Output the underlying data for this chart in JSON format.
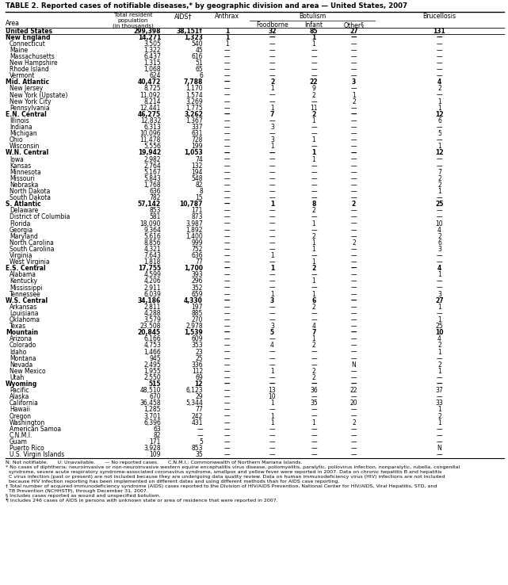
{
  "title": "TABLE 2. Reported cases of notifiable diseases,* by geographic division and area — United States, 2007",
  "botulism_header": "Botulism",
  "rows": [
    [
      "United States",
      "299,398",
      "38,151†",
      "1",
      "32",
      "85",
      "27",
      "131"
    ],
    [
      "New England",
      "14,271",
      "1,323",
      "1",
      "—",
      "1",
      "—",
      "—"
    ],
    [
      "Connecticut",
      "3,505",
      "540",
      "1",
      "—",
      "1",
      "—",
      "—"
    ],
    [
      "Maine",
      "1,322",
      "45",
      "—",
      "—",
      "—",
      "—",
      "—"
    ],
    [
      "Massachusetts",
      "6,437",
      "616",
      "—",
      "—",
      "—",
      "—",
      "—"
    ],
    [
      "New Hampshire",
      "1,315",
      "51",
      "—",
      "—",
      "—",
      "—",
      "—"
    ],
    [
      "Rhode Island",
      "1,068",
      "65",
      "—",
      "—",
      "—",
      "—",
      "—"
    ],
    [
      "Vermont",
      "624",
      "6",
      "—",
      "—",
      "—",
      "—",
      "—"
    ],
    [
      "Mid. Atlantic",
      "40,472",
      "7,788",
      "—",
      "2",
      "22",
      "3",
      "4"
    ],
    [
      "New Jersey",
      "8,725",
      "1,170",
      "—",
      "1",
      "9",
      "—",
      "2"
    ],
    [
      "New York (Upstate)",
      "11,092",
      "1,574",
      "—",
      "—",
      "2",
      "1",
      "—"
    ],
    [
      "New York City",
      "8,214",
      "3,269",
      "—",
      "—",
      "—",
      "2",
      "1"
    ],
    [
      "Pennsylvania",
      "12,441",
      "1,775",
      "—",
      "1",
      "11",
      "—",
      "1"
    ],
    [
      "E.N. Central",
      "46,275",
      "3,262",
      "—",
      "7",
      "2",
      "—",
      "12"
    ],
    [
      "Illinois",
      "12,832",
      "1,367",
      "—",
      "—",
      "1",
      "—",
      "6"
    ],
    [
      "Indiana",
      "6,313",
      "337",
      "—",
      "3",
      "—",
      "—",
      "—"
    ],
    [
      "Michigan",
      "10,096",
      "631",
      "—",
      "—",
      "—",
      "—",
      "5"
    ],
    [
      "Ohio",
      "11,478",
      "728",
      "—",
      "3",
      "1",
      "—",
      "—"
    ],
    [
      "Wisconsin",
      "5,556",
      "199",
      "—",
      "1",
      "—",
      "—",
      "1"
    ],
    [
      "W.N. Central",
      "19,942",
      "1,053",
      "—",
      "—",
      "1",
      "—",
      "12"
    ],
    [
      "Iowa",
      "2,982",
      "74",
      "—",
      "—",
      "1",
      "—",
      "—"
    ],
    [
      "Kansas",
      "2,764",
      "132",
      "—",
      "—",
      "—",
      "—",
      "—"
    ],
    [
      "Minnesota",
      "5,167",
      "194",
      "—",
      "—",
      "—",
      "—",
      "7"
    ],
    [
      "Missouri",
      "5,843",
      "548",
      "—",
      "—",
      "—",
      "—",
      "2"
    ],
    [
      "Nebraska",
      "1,768",
      "82",
      "—",
      "—",
      "—",
      "—",
      "2"
    ],
    [
      "North Dakota",
      "636",
      "8",
      "—",
      "—",
      "—",
      "—",
      "1"
    ],
    [
      "South Dakota",
      "782",
      "15",
      "—",
      "—",
      "—",
      "—",
      "—"
    ],
    [
      "S. Atlantic",
      "57,142",
      "10,787",
      "—",
      "1",
      "8",
      "2",
      "25"
    ],
    [
      "Delaware",
      "853",
      "171",
      "—",
      "—",
      "2",
      "—",
      "—"
    ],
    [
      "District of Columbia",
      "581",
      "873",
      "—",
      "—",
      "—",
      "—",
      "—"
    ],
    [
      "Florida",
      "18,090",
      "3,987",
      "—",
      "—",
      "1",
      "—",
      "10"
    ],
    [
      "Georgia",
      "9,364",
      "1,892",
      "—",
      "—",
      "—",
      "—",
      "4"
    ],
    [
      "Maryland",
      "5,616",
      "1,400",
      "—",
      "—",
      "2",
      "—",
      "2"
    ],
    [
      "North Carolina",
      "8,856",
      "999",
      "—",
      "—",
      "1",
      "2",
      "6"
    ],
    [
      "South Carolina",
      "4,321",
      "752",
      "—",
      "—",
      "1",
      "—",
      "3"
    ],
    [
      "Virginia",
      "7,643",
      "636",
      "—",
      "1",
      "—",
      "—",
      "—"
    ],
    [
      "West Virginia",
      "1,818",
      "77",
      "—",
      "—",
      "1",
      "—",
      "—"
    ],
    [
      "E.S. Central",
      "17,755",
      "1,700",
      "—",
      "1",
      "2",
      "—",
      "4"
    ],
    [
      "Alabama",
      "4,599",
      "393",
      "—",
      "—",
      "—",
      "—",
      "1"
    ],
    [
      "Kentucky",
      "4,206",
      "296",
      "—",
      "—",
      "1",
      "—",
      "—"
    ],
    [
      "Mississippi",
      "2,911",
      "352",
      "—",
      "—",
      "—",
      "—",
      "—"
    ],
    [
      "Tennessee",
      "6,039",
      "659",
      "—",
      "1",
      "1",
      "—",
      "3"
    ],
    [
      "W.S. Central",
      "34,186",
      "4,330",
      "—",
      "3",
      "6",
      "—",
      "27"
    ],
    [
      "Arkansas",
      "2,811",
      "197",
      "—",
      "—",
      "2",
      "—",
      "1"
    ],
    [
      "Louisiana",
      "4,288",
      "885",
      "—",
      "—",
      "—",
      "—",
      "—"
    ],
    [
      "Oklahoma",
      "3,579",
      "270",
      "—",
      "—",
      "—",
      "—",
      "1"
    ],
    [
      "Texas",
      "23,508",
      "2,978",
      "—",
      "3",
      "4",
      "—",
      "25"
    ],
    [
      "Mountain",
      "20,845",
      "1,539",
      "—",
      "5",
      "7",
      "—",
      "10"
    ],
    [
      "Arizona",
      "6,166",
      "609",
      "—",
      "—",
      "1",
      "—",
      "4"
    ],
    [
      "Colorado",
      "4,753",
      "353",
      "—",
      "4",
      "2",
      "—",
      "2"
    ],
    [
      "Idaho",
      "1,466",
      "23",
      "—",
      "—",
      "—",
      "—",
      "1"
    ],
    [
      "Montana",
      "945",
      "25",
      "—",
      "—",
      "—",
      "—",
      "—"
    ],
    [
      "Nevada",
      "2,495",
      "336",
      "—",
      "—",
      "—",
      "N",
      "2"
    ],
    [
      "New Mexico",
      "1,955",
      "112",
      "—",
      "1",
      "2",
      "—",
      "1"
    ],
    [
      "Utah",
      "2,550",
      "69",
      "—",
      "—",
      "2",
      "—",
      "—"
    ],
    [
      "Wyoming",
      "515",
      "12",
      "—",
      "—",
      "—",
      "—",
      "—"
    ],
    [
      "Pacific",
      "48,510",
      "6,123",
      "—",
      "13",
      "36",
      "22",
      "37"
    ],
    [
      "Alaska",
      "670",
      "29",
      "—",
      "10",
      "—",
      "—",
      "—"
    ],
    [
      "California",
      "36,458",
      "5,344",
      "—",
      "1",
      "35",
      "20",
      "33"
    ],
    [
      "Hawaii",
      "1,285",
      "77",
      "—",
      "—",
      "—",
      "—",
      "1"
    ],
    [
      "Oregon",
      "3,701",
      "242",
      "—",
      "1",
      "—",
      "—",
      "2"
    ],
    [
      "Washington",
      "6,396",
      "431",
      "—",
      "1",
      "1",
      "2",
      "1"
    ],
    [
      "American Samoa",
      "63",
      "—",
      "—",
      "—",
      "—",
      "—",
      "—"
    ],
    [
      "C.N.M.I.",
      "82",
      "—",
      "—",
      "—",
      "—",
      "—",
      "—"
    ],
    [
      "Guam",
      "171",
      "5",
      "—",
      "—",
      "—",
      "—",
      "—"
    ],
    [
      "Puerto Rico",
      "3,928",
      "853",
      "—",
      "—",
      "—",
      "—",
      "N"
    ],
    [
      "U.S. Virgin Islands",
      "109",
      "35",
      "—",
      "—",
      "—",
      "—",
      "—"
    ]
  ],
  "bold_rows": [
    0,
    1,
    8,
    13,
    19,
    27,
    37,
    42,
    47,
    55
  ],
  "footnote_lines": [
    "N: Not notifiable.      U: Unavailable.      — No reported cases.      C.N.M.I.: Commonwealth of Northern Mariana Islands.",
    "* No cases of diphtheria; neuroinvasive or non-neuroinvasive western equine encephalitis virus disease, poliomyelitis, paralytic, poliovirus infection, nonparalytic, rubella, congenital",
    "  syndrome, severe acute respiratory syndrome-associated coronavirus syndrome, smallpox and yellow fever were reported in 2007. Data on chronic hepatitis B and hepatitis",
    "  C virus infection (past or present) are not included because they are undergoing data quality review. Data on human immunodeficiency virus (HIV) infections are not included",
    "  because HIV infection reporting has been implemented on different dates and using different methods than for AIDS case reporting.",
    "† Total number of acquired immunodeficiency syndrome (AIDS) cases reported to the Division of HIV/AIDS Prevention, National Center for HIV/AIDS, Viral Hepatitis, STD, and",
    "  TB Prevention (NCHHSTP), through December 31, 2007.",
    "§ Includes cases reported as wound and unspecified botulism.",
    "¶ Includes 246 cases of AIDS in persons with unknown state or area of residence that were reported in 2007."
  ]
}
